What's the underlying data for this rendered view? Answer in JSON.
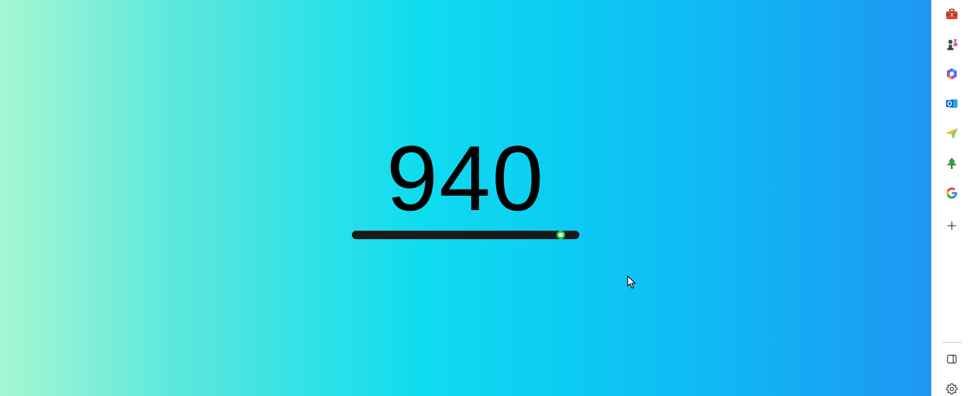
{
  "counter": {
    "value": "940"
  },
  "slider": {
    "value_fraction": 0.92,
    "track_color": "#1a1a1a",
    "thumb_color": "#2ecc40"
  },
  "sidebar": {
    "items": [
      {
        "name": "tools-icon"
      },
      {
        "name": "chess-icon"
      },
      {
        "name": "copilot-icon"
      },
      {
        "name": "outlook-icon"
      },
      {
        "name": "send-icon"
      },
      {
        "name": "tree-icon"
      },
      {
        "name": "google-icon"
      },
      {
        "name": "add-icon"
      }
    ],
    "bottom": [
      {
        "name": "sidebar-toggle-icon"
      },
      {
        "name": "settings-icon"
      }
    ]
  }
}
